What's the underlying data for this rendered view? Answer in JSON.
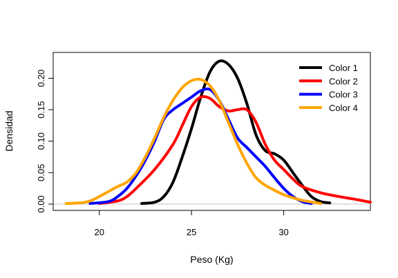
{
  "chart_data": {
    "type": "line",
    "xlabel": "Peso (Kg)",
    "ylabel": "Densidad",
    "xlim": [
      17.5,
      34.7
    ],
    "ylim": [
      -0.01,
      0.241
    ],
    "x_ticks": [
      20,
      25,
      30
    ],
    "y_ticks": [
      0.0,
      0.05,
      0.1,
      0.15,
      0.2
    ],
    "y_tick_labels": [
      "0.00",
      "0.05",
      "0.10",
      "0.15",
      "0.20"
    ],
    "grid": false,
    "legend": {
      "position": "top-right"
    },
    "baseline": 0,
    "series": [
      {
        "name": "Color 1",
        "color": "#000000",
        "points": [
          [
            22.3,
            0.001
          ],
          [
            23.0,
            0.003
          ],
          [
            23.5,
            0.012
          ],
          [
            24.0,
            0.035
          ],
          [
            24.5,
            0.075
          ],
          [
            25.0,
            0.12
          ],
          [
            25.5,
            0.17
          ],
          [
            26.0,
            0.21
          ],
          [
            26.5,
            0.227
          ],
          [
            27.0,
            0.222
          ],
          [
            27.5,
            0.2
          ],
          [
            28.0,
            0.16
          ],
          [
            28.5,
            0.11
          ],
          [
            29.0,
            0.085
          ],
          [
            29.5,
            0.08
          ],
          [
            30.0,
            0.07
          ],
          [
            30.5,
            0.05
          ],
          [
            31.0,
            0.03
          ],
          [
            31.5,
            0.012
          ],
          [
            32.0,
            0.004
          ],
          [
            32.5,
            0.002
          ]
        ]
      },
      {
        "name": "Color 2",
        "color": "#ff0000",
        "points": [
          [
            20.0,
            0.001
          ],
          [
            21.0,
            0.005
          ],
          [
            21.5,
            0.012
          ],
          [
            22.0,
            0.025
          ],
          [
            23.0,
            0.055
          ],
          [
            24.0,
            0.095
          ],
          [
            24.5,
            0.125
          ],
          [
            25.0,
            0.155
          ],
          [
            25.5,
            0.17
          ],
          [
            26.0,
            0.168
          ],
          [
            26.5,
            0.155
          ],
          [
            27.0,
            0.148
          ],
          [
            27.5,
            0.15
          ],
          [
            28.0,
            0.15
          ],
          [
            28.5,
            0.13
          ],
          [
            29.0,
            0.095
          ],
          [
            29.5,
            0.07
          ],
          [
            30.0,
            0.055
          ],
          [
            30.5,
            0.04
          ],
          [
            31.0,
            0.028
          ],
          [
            32.0,
            0.018
          ],
          [
            33.0,
            0.012
          ],
          [
            34.0,
            0.007
          ],
          [
            34.7,
            0.003
          ]
        ]
      },
      {
        "name": "Color 3",
        "color": "#0000ff",
        "points": [
          [
            19.5,
            0.001
          ],
          [
            20.5,
            0.004
          ],
          [
            21.0,
            0.012
          ],
          [
            21.5,
            0.025
          ],
          [
            22.0,
            0.045
          ],
          [
            22.5,
            0.07
          ],
          [
            23.0,
            0.1
          ],
          [
            23.5,
            0.135
          ],
          [
            24.0,
            0.15
          ],
          [
            24.5,
            0.16
          ],
          [
            25.0,
            0.17
          ],
          [
            25.5,
            0.18
          ],
          [
            26.0,
            0.182
          ],
          [
            26.5,
            0.165
          ],
          [
            27.0,
            0.135
          ],
          [
            27.5,
            0.105
          ],
          [
            28.0,
            0.09
          ],
          [
            28.5,
            0.075
          ],
          [
            29.0,
            0.06
          ],
          [
            29.5,
            0.042
          ],
          [
            30.0,
            0.025
          ],
          [
            30.5,
            0.012
          ],
          [
            31.0,
            0.004
          ],
          [
            31.5,
            0.001
          ]
        ]
      },
      {
        "name": "Color 4",
        "color": "#ffa500",
        "points": [
          [
            18.2,
            0.001
          ],
          [
            19.0,
            0.002
          ],
          [
            19.5,
            0.005
          ],
          [
            20.0,
            0.012
          ],
          [
            20.5,
            0.02
          ],
          [
            21.0,
            0.028
          ],
          [
            21.5,
            0.035
          ],
          [
            22.0,
            0.05
          ],
          [
            22.5,
            0.075
          ],
          [
            23.0,
            0.105
          ],
          [
            23.5,
            0.138
          ],
          [
            24.0,
            0.165
          ],
          [
            24.5,
            0.185
          ],
          [
            25.0,
            0.196
          ],
          [
            25.5,
            0.198
          ],
          [
            26.0,
            0.188
          ],
          [
            26.5,
            0.165
          ],
          [
            27.0,
            0.13
          ],
          [
            27.5,
            0.095
          ],
          [
            28.0,
            0.065
          ],
          [
            28.5,
            0.042
          ],
          [
            29.0,
            0.03
          ],
          [
            29.5,
            0.022
          ],
          [
            30.0,
            0.015
          ],
          [
            30.5,
            0.01
          ],
          [
            31.0,
            0.006
          ],
          [
            32.0,
            0.001
          ]
        ]
      }
    ]
  }
}
